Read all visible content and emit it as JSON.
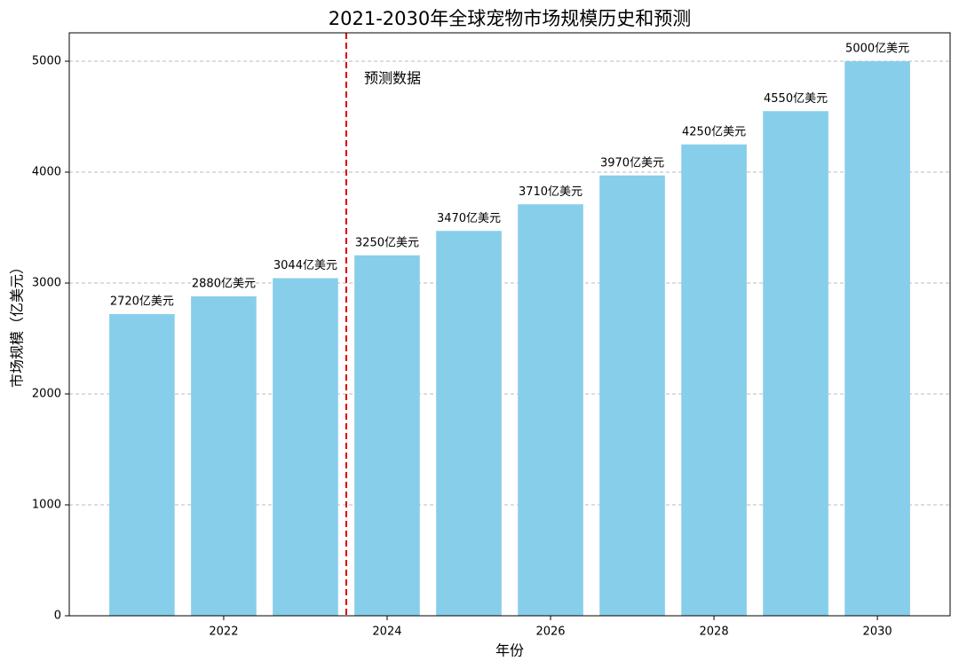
{
  "chart_data": {
    "type": "bar",
    "title": "2021-2030年全球宠物市场规模历史和预测",
    "x_label": "年份",
    "y_label": "市场规模（亿美元）",
    "x": [
      2021,
      2022,
      2023,
      2024,
      2025,
      2026,
      2027,
      2028,
      2029,
      2030
    ],
    "values": [
      2720,
      2880,
      3044,
      3250,
      3470,
      3710,
      3970,
      4250,
      4550,
      5000
    ],
    "value_labels": [
      "2720亿美元",
      "2880亿美元",
      "3044亿美元",
      "3250亿美元",
      "3470亿美元",
      "3710亿美元",
      "3970亿美元",
      "4250亿美元",
      "4550亿美元",
      "5000亿美元"
    ],
    "color": "#87ceeb",
    "xlim": [
      2020.11,
      2030.89
    ],
    "xticks": [
      2022,
      2024,
      2026,
      2028,
      2030
    ],
    "ylim": [
      0,
      5256
    ],
    "yticks": [
      0,
      1000,
      2000,
      3000,
      4000,
      5000
    ],
    "grid": true,
    "vline": {
      "x": 2023.5,
      "color": "#dd0000",
      "label": "预测数据"
    }
  }
}
